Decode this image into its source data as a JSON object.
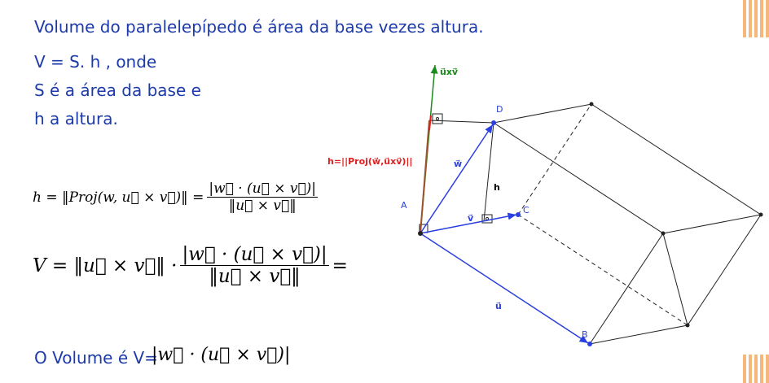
{
  "intro": {
    "lines": [
      "Volume do paralelepípedo é  área da base vezes altura.",
      "V = S. h , onde",
      "S é a área da base e",
      "h a altura."
    ]
  },
  "formula_h": {
    "left": "h = ‖Proj(w, u⃗ × v⃗)‖ =",
    "numerator": "|w⃗ · (u⃗ × v⃗)|",
    "denominator": "‖u⃗ × v⃗‖"
  },
  "formula_v": {
    "left": "V = ‖u⃗ × v⃗‖ ·",
    "numerator": "|w⃗ · (u⃗ × v⃗)|",
    "denominator": "‖u⃗ × v⃗‖",
    "right": "="
  },
  "conclusion": {
    "text": "O Volume é V=",
    "formula": "|w⃗ · (u⃗ × v⃗)|"
  },
  "diagram": {
    "labels": {
      "cross": "u⃗xv⃗",
      "projection": "h=||Proj(w⃗,u⃗xv⃗)||",
      "w": "w⃗",
      "v": "v⃗",
      "u": "u⃗",
      "h": "h",
      "A": "A",
      "B": "B",
      "C": "C",
      "D": "D"
    }
  }
}
